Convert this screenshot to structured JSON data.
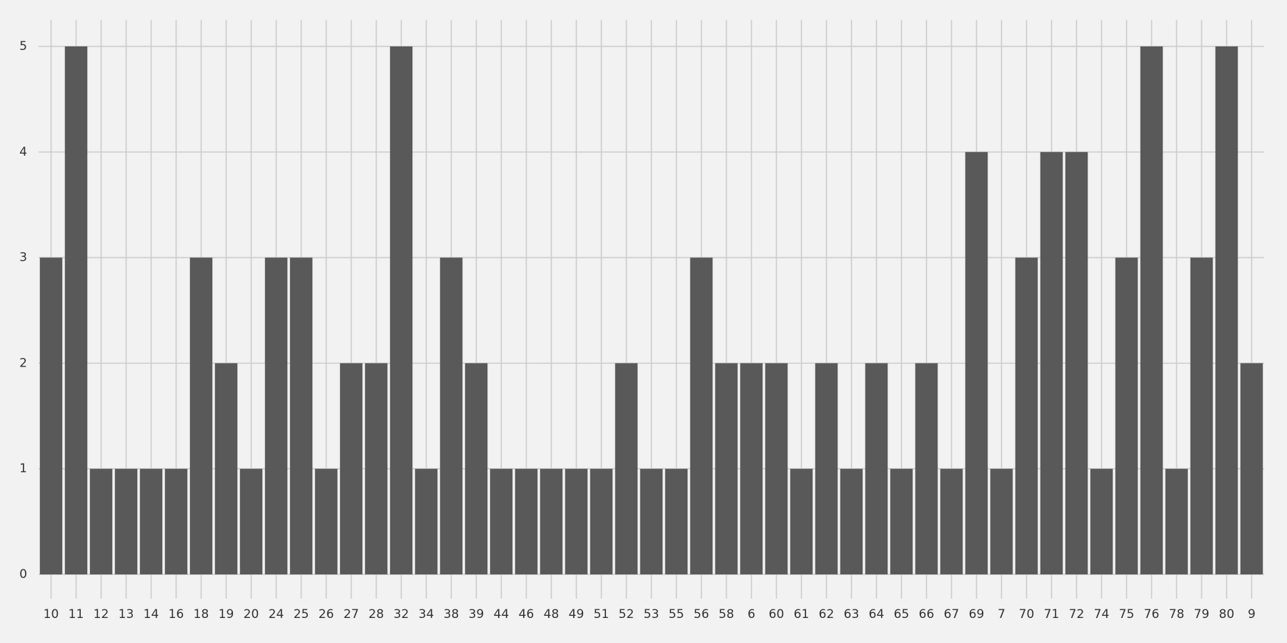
{
  "chart_data": {
    "type": "bar",
    "categories": [
      "10",
      "11",
      "12",
      "13",
      "14",
      "16",
      "18",
      "19",
      "20",
      "24",
      "25",
      "26",
      "27",
      "28",
      "32",
      "34",
      "38",
      "39",
      "44",
      "46",
      "48",
      "49",
      "51",
      "52",
      "53",
      "55",
      "56",
      "58",
      "6",
      "60",
      "61",
      "62",
      "63",
      "64",
      "65",
      "66",
      "67",
      "69",
      "7",
      "70",
      "71",
      "72",
      "74",
      "75",
      "76",
      "78",
      "79",
      "80",
      "9"
    ],
    "values": [
      3,
      5,
      1,
      1,
      1,
      1,
      3,
      2,
      1,
      3,
      3,
      1,
      2,
      2,
      5,
      1,
      3,
      2,
      1,
      1,
      1,
      1,
      1,
      2,
      1,
      1,
      3,
      2,
      2,
      2,
      1,
      2,
      1,
      2,
      1,
      2,
      1,
      4,
      1,
      3,
      4,
      4,
      1,
      3,
      5,
      1,
      3,
      5,
      2
    ],
    "color": "#595959",
    "ylim": [
      0,
      5.25
    ],
    "yticks": [
      0,
      1,
      2,
      3,
      4,
      5
    ],
    "grid": true
  }
}
